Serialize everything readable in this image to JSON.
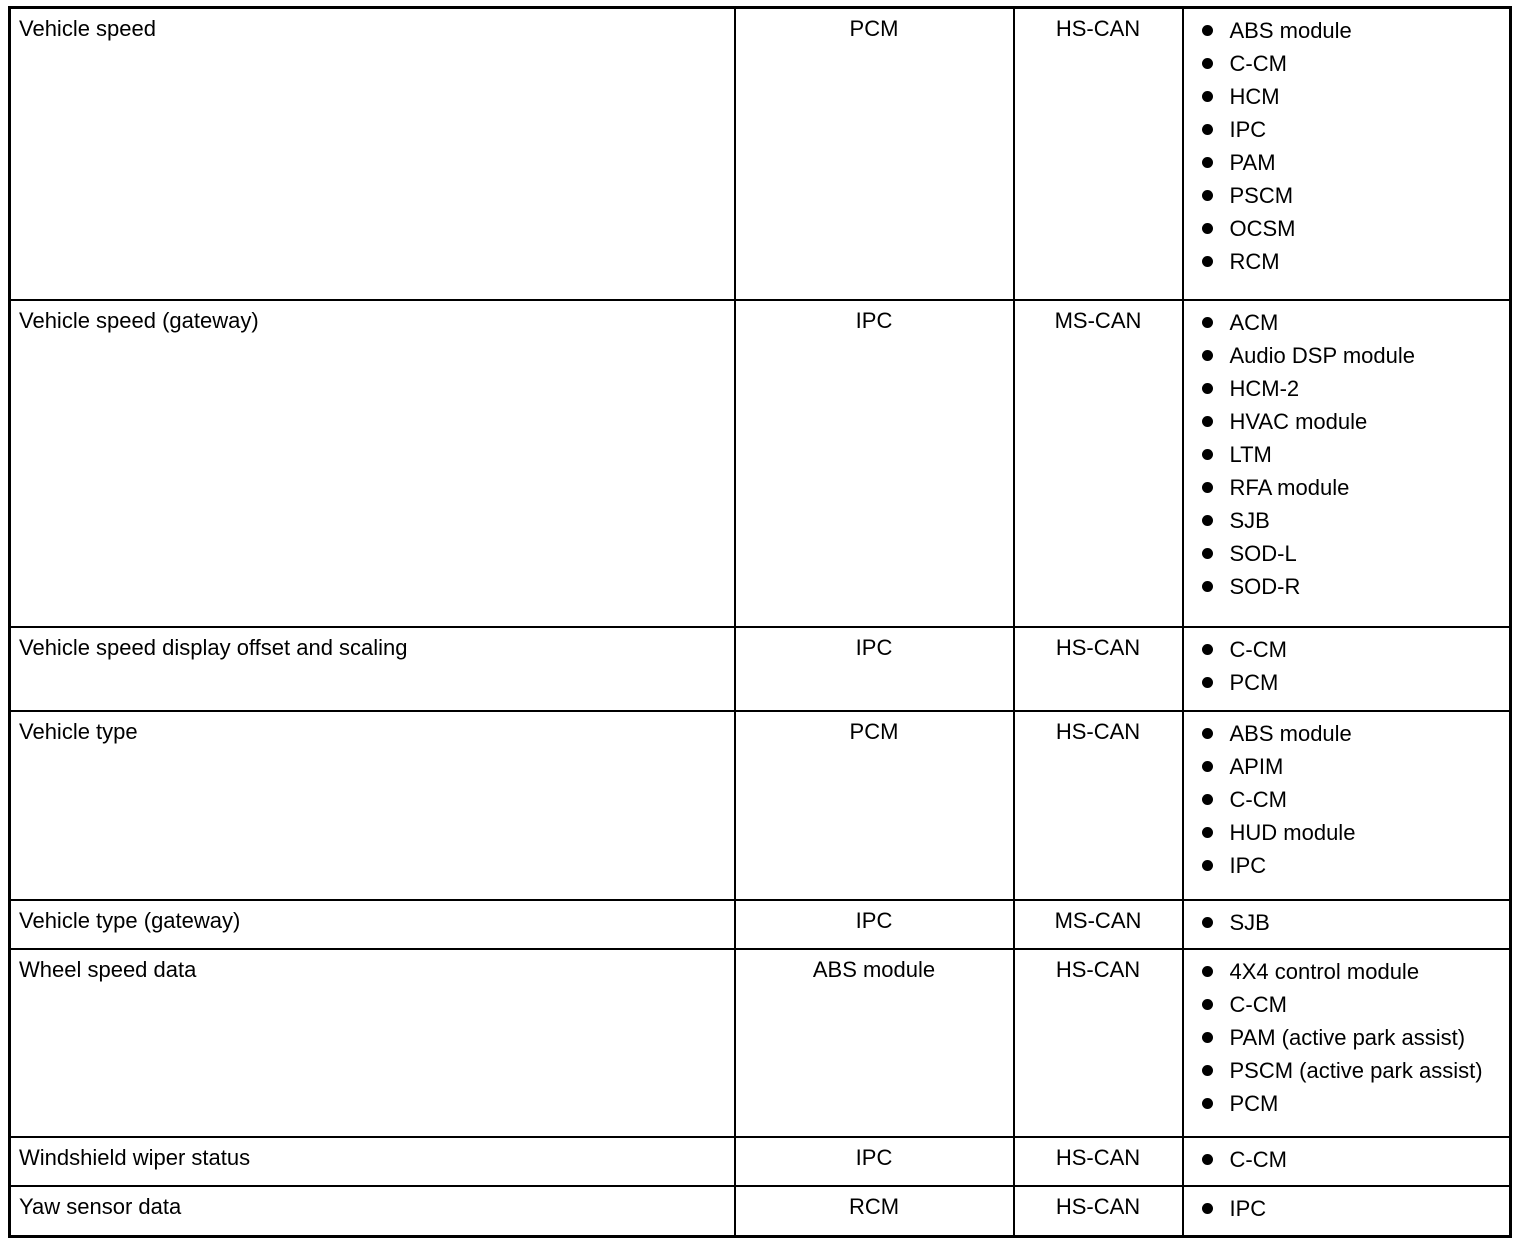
{
  "table": {
    "rows": [
      {
        "message": "Vehicle speed",
        "origin": "PCM",
        "network": "HS-CAN",
        "receivers": [
          "ABS module",
          "C-CM",
          "HCM",
          "IPC",
          "PAM",
          "PSCM",
          "OCSM",
          "RCM"
        ]
      },
      {
        "message": "Vehicle speed (gateway)",
        "origin": "IPC",
        "network": "MS-CAN",
        "receivers": [
          "ACM",
          "Audio DSP module",
          "HCM-2",
          "HVAC module",
          "LTM",
          "RFA module",
          "SJB",
          "SOD-L",
          "SOD-R"
        ]
      },
      {
        "message": "Vehicle speed display offset and scaling",
        "origin": "IPC",
        "network": "HS-CAN",
        "receivers": [
          "C-CM",
          "PCM"
        ]
      },
      {
        "message": "Vehicle type",
        "origin": "PCM",
        "network": "HS-CAN",
        "receivers": [
          "ABS module",
          "APIM",
          "C-CM",
          "HUD module",
          "IPC"
        ]
      },
      {
        "message": "Vehicle type (gateway)",
        "origin": "IPC",
        "network": "MS-CAN",
        "receivers": [
          "SJB"
        ]
      },
      {
        "message": "Wheel speed data",
        "origin": "ABS module",
        "network": "HS-CAN",
        "receivers": [
          "4X4 control module",
          "C-CM",
          "PAM (active park assist)",
          "PSCM (active park assist)",
          "PCM"
        ]
      },
      {
        "message": "Windshield wiper status",
        "origin": "IPC",
        "network": "HS-CAN",
        "receivers": [
          "C-CM"
        ]
      },
      {
        "message": "Yaw sensor data",
        "origin": "RCM",
        "network": "HS-CAN",
        "receivers": [
          "IPC"
        ]
      }
    ]
  }
}
